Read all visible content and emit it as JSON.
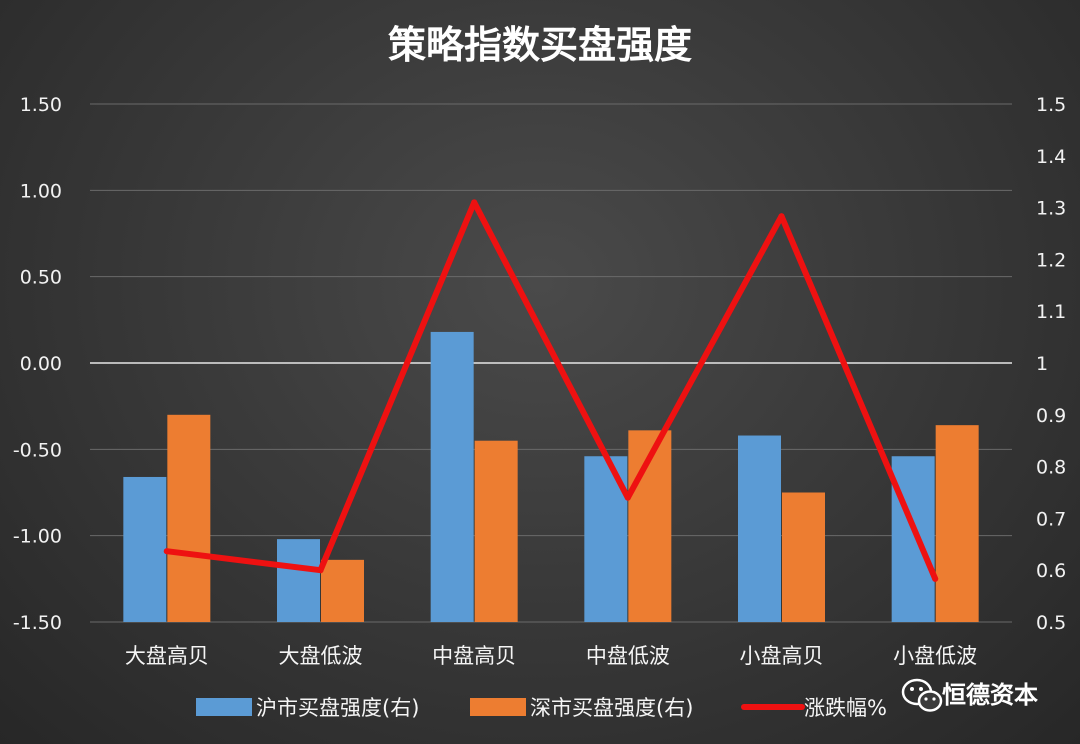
{
  "chart_data": {
    "type": "bar",
    "title": "策略指数买盘强度",
    "categories": [
      "大盘高贝",
      "大盘低波",
      "中盘高贝",
      "中盘低波",
      "小盘高贝",
      "小盘低波"
    ],
    "y_left": {
      "min": -1.5,
      "max": 1.5,
      "ticks": [
        "1.50",
        "1.00",
        "0.50",
        "0.00",
        "-0.50",
        "-1.00",
        "-1.50"
      ]
    },
    "y_right": {
      "min": 0.5,
      "max": 1.5,
      "ticks": [
        "1.5",
        "1.4",
        "1.3",
        "1.2",
        "1.1",
        "1",
        "0.9",
        "0.8",
        "0.7",
        "0.6",
        "0.5"
      ]
    },
    "series": [
      {
        "name": "沪市买盘强度(右)",
        "type": "bar",
        "axis": "right",
        "color": "#5b9bd5",
        "values": [
          0.78,
          0.66,
          1.06,
          0.82,
          0.86,
          0.82
        ]
      },
      {
        "name": "深市买盘强度(右)",
        "type": "bar",
        "axis": "right",
        "color": "#ed7d31",
        "values": [
          0.9,
          0.62,
          0.85,
          0.87,
          0.75,
          0.88
        ]
      },
      {
        "name": "涨跌幅%",
        "type": "line",
        "axis": "left",
        "color": "#ee1111",
        "values": [
          -1.09,
          -1.2,
          0.93,
          -0.78,
          0.85,
          -1.25
        ]
      }
    ],
    "grid": true,
    "legend_position": "bottom"
  },
  "watermark": {
    "text": "恒德资本",
    "icon": "wechat-icon"
  }
}
